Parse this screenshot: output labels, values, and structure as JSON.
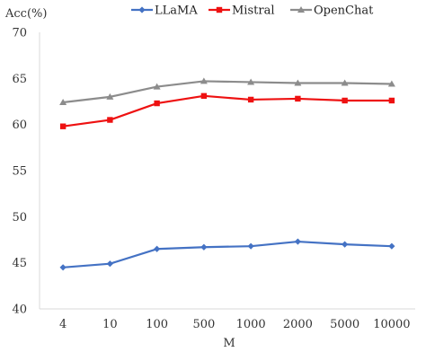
{
  "chart_data": {
    "type": "line",
    "xlabel": "M",
    "ylabel": "Acc(%)",
    "categories": [
      "4",
      "10",
      "100",
      "500",
      "1000",
      "2000",
      "5000",
      "10000"
    ],
    "ylim": [
      40,
      70
    ],
    "yticks": [
      40,
      45,
      50,
      55,
      60,
      65,
      70
    ],
    "grid": false,
    "legend_position": "top-center",
    "series": [
      {
        "name": "LLaMA",
        "color": "#4472C4",
        "marker": "diamond",
        "values": [
          44.5,
          44.9,
          46.5,
          46.7,
          46.8,
          47.3,
          47.0,
          46.8
        ]
      },
      {
        "name": "Mistral",
        "color": "#EE1111",
        "marker": "square",
        "values": [
          59.8,
          60.5,
          62.3,
          63.1,
          62.7,
          62.8,
          62.6,
          62.6
        ]
      },
      {
        "name": "OpenChat",
        "color": "#8C8C8C",
        "marker": "triangle",
        "values": [
          62.4,
          63.0,
          64.1,
          64.7,
          64.6,
          64.5,
          64.5,
          64.4
        ]
      }
    ]
  }
}
